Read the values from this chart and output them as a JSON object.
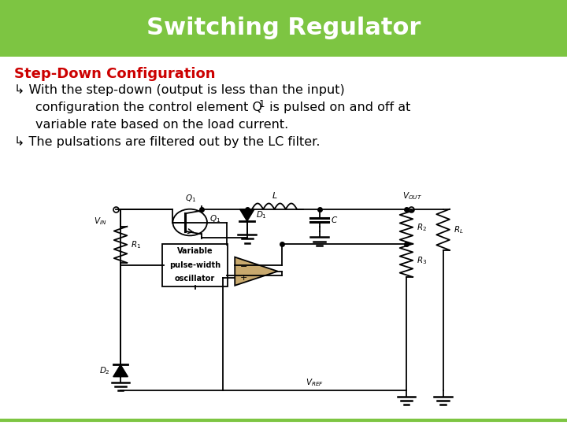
{
  "title": "Switching Regulator",
  "title_bg_color": "#7DC542",
  "title_text_color": "#FFFFFF",
  "title_fontsize": 22,
  "subtitle": "Step-Down Configuration",
  "subtitle_color": "#CC0000",
  "subtitle_fontsize": 13,
  "body_bg_color": "#FFFFFF",
  "text_color": "#000000",
  "text_fontsize": 11.5,
  "bottom_line_color": "#7DC542",
  "bullet_symbol": "↳",
  "line1": "With the step-down (output is less than the input)",
  "line2a": "configuration the control element Q",
  "line2b": "1",
  "line2c": " is pulsed on and off at",
  "line3": "variable rate based on the load current.",
  "line4": "The pulsations are filtered out by the LC filter.",
  "osc_label": [
    "Variable",
    "pulse-width",
    "oscillator"
  ],
  "vref_label": "$V_{REF}$",
  "vin_label": "$V_{IN}$",
  "vout_label": "$V_{OUT}$",
  "opamp_color": "#C8A96E"
}
